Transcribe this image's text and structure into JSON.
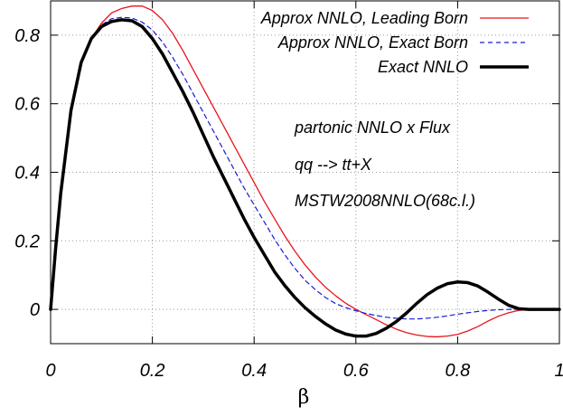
{
  "chart_data": {
    "type": "line",
    "xlabel": "β",
    "ylabel": "",
    "xlim": [
      0,
      1
    ],
    "ylim": [
      -0.1,
      0.9
    ],
    "xticks": [
      "0",
      "0.2",
      "0.4",
      "0.6",
      "0.8",
      "1"
    ],
    "yticks": [
      "0",
      "0.2",
      "0.4",
      "0.6",
      "0.8"
    ],
    "grid": "dotted, at major ticks",
    "legend_position": "top-right",
    "annotations": [
      "partonic NNLO x Flux",
      "qq --> tt+X",
      "MSTW2008NNLO(68c.l.)"
    ],
    "series": [
      {
        "name": "Approx NNLO, Leading Born",
        "color": "#e8141c",
        "style": "solid-thin",
        "x": [
          0,
          0.01,
          0.02,
          0.04,
          0.06,
          0.08,
          0.1,
          0.12,
          0.14,
          0.16,
          0.18,
          0.2,
          0.22,
          0.24,
          0.26,
          0.28,
          0.3,
          0.32,
          0.34,
          0.36,
          0.38,
          0.4,
          0.42,
          0.44,
          0.46,
          0.48,
          0.5,
          0.52,
          0.54,
          0.56,
          0.58,
          0.6,
          0.62,
          0.64,
          0.66,
          0.68,
          0.7,
          0.72,
          0.74,
          0.76,
          0.78,
          0.8,
          0.82,
          0.84,
          0.86,
          0.88,
          0.9,
          0.92,
          0.94,
          0.96,
          0.98,
          1.0
        ],
        "y": [
          0,
          0.18,
          0.34,
          0.58,
          0.72,
          0.79,
          0.835,
          0.865,
          0.878,
          0.885,
          0.885,
          0.872,
          0.845,
          0.805,
          0.755,
          0.7,
          0.645,
          0.59,
          0.535,
          0.48,
          0.425,
          0.37,
          0.315,
          0.265,
          0.215,
          0.17,
          0.13,
          0.095,
          0.065,
          0.04,
          0.018,
          0.0,
          -0.015,
          -0.03,
          -0.045,
          -0.058,
          -0.068,
          -0.075,
          -0.079,
          -0.08,
          -0.078,
          -0.073,
          -0.063,
          -0.05,
          -0.034,
          -0.02,
          -0.01,
          -0.003,
          0,
          0,
          0,
          0
        ]
      },
      {
        "name": "Approx NNLO, Exact Born",
        "color": "#1a1ad6",
        "style": "dashed",
        "x": [
          0,
          0.01,
          0.02,
          0.04,
          0.06,
          0.08,
          0.1,
          0.12,
          0.14,
          0.16,
          0.18,
          0.2,
          0.22,
          0.24,
          0.26,
          0.28,
          0.3,
          0.32,
          0.34,
          0.36,
          0.38,
          0.4,
          0.42,
          0.44,
          0.46,
          0.48,
          0.5,
          0.52,
          0.54,
          0.56,
          0.58,
          0.6,
          0.62,
          0.64,
          0.66,
          0.68,
          0.7,
          0.72,
          0.74,
          0.76,
          0.78,
          0.8,
          0.82,
          0.84,
          0.86,
          0.88,
          0.9,
          0.92,
          0.94,
          0.96,
          0.98,
          1.0
        ],
        "y": [
          0,
          0.18,
          0.34,
          0.58,
          0.72,
          0.79,
          0.83,
          0.848,
          0.852,
          0.85,
          0.838,
          0.815,
          0.78,
          0.735,
          0.685,
          0.63,
          0.575,
          0.52,
          0.465,
          0.41,
          0.355,
          0.305,
          0.255,
          0.205,
          0.16,
          0.12,
          0.085,
          0.058,
          0.035,
          0.017,
          0.005,
          -0.004,
          -0.012,
          -0.018,
          -0.023,
          -0.026,
          -0.028,
          -0.028,
          -0.026,
          -0.023,
          -0.019,
          -0.014,
          -0.01,
          -0.006,
          -0.003,
          -0.001,
          0,
          0,
          0,
          0,
          0,
          0
        ]
      },
      {
        "name": "Exact NNLO",
        "color": "#000000",
        "style": "solid-thick",
        "x": [
          0,
          0.01,
          0.02,
          0.04,
          0.06,
          0.08,
          0.1,
          0.12,
          0.14,
          0.16,
          0.18,
          0.2,
          0.22,
          0.24,
          0.26,
          0.28,
          0.3,
          0.32,
          0.34,
          0.36,
          0.38,
          0.4,
          0.42,
          0.44,
          0.46,
          0.48,
          0.5,
          0.52,
          0.54,
          0.56,
          0.58,
          0.6,
          0.62,
          0.64,
          0.66,
          0.68,
          0.7,
          0.72,
          0.74,
          0.76,
          0.78,
          0.8,
          0.82,
          0.84,
          0.86,
          0.88,
          0.9,
          0.92,
          0.94,
          0.96,
          0.98,
          1.0
        ],
        "y": [
          0,
          0.18,
          0.34,
          0.58,
          0.72,
          0.79,
          0.825,
          0.84,
          0.845,
          0.842,
          0.825,
          0.79,
          0.745,
          0.69,
          0.635,
          0.575,
          0.51,
          0.445,
          0.385,
          0.325,
          0.265,
          0.21,
          0.16,
          0.11,
          0.07,
          0.035,
          0.005,
          -0.02,
          -0.042,
          -0.06,
          -0.072,
          -0.078,
          -0.078,
          -0.07,
          -0.055,
          -0.035,
          -0.01,
          0.018,
          0.043,
          0.062,
          0.075,
          0.08,
          0.078,
          0.068,
          0.05,
          0.03,
          0.012,
          0.002,
          0,
          0,
          0,
          0
        ]
      }
    ]
  },
  "colors": {
    "grid": "#9a9a9a",
    "frame": "#000000"
  }
}
